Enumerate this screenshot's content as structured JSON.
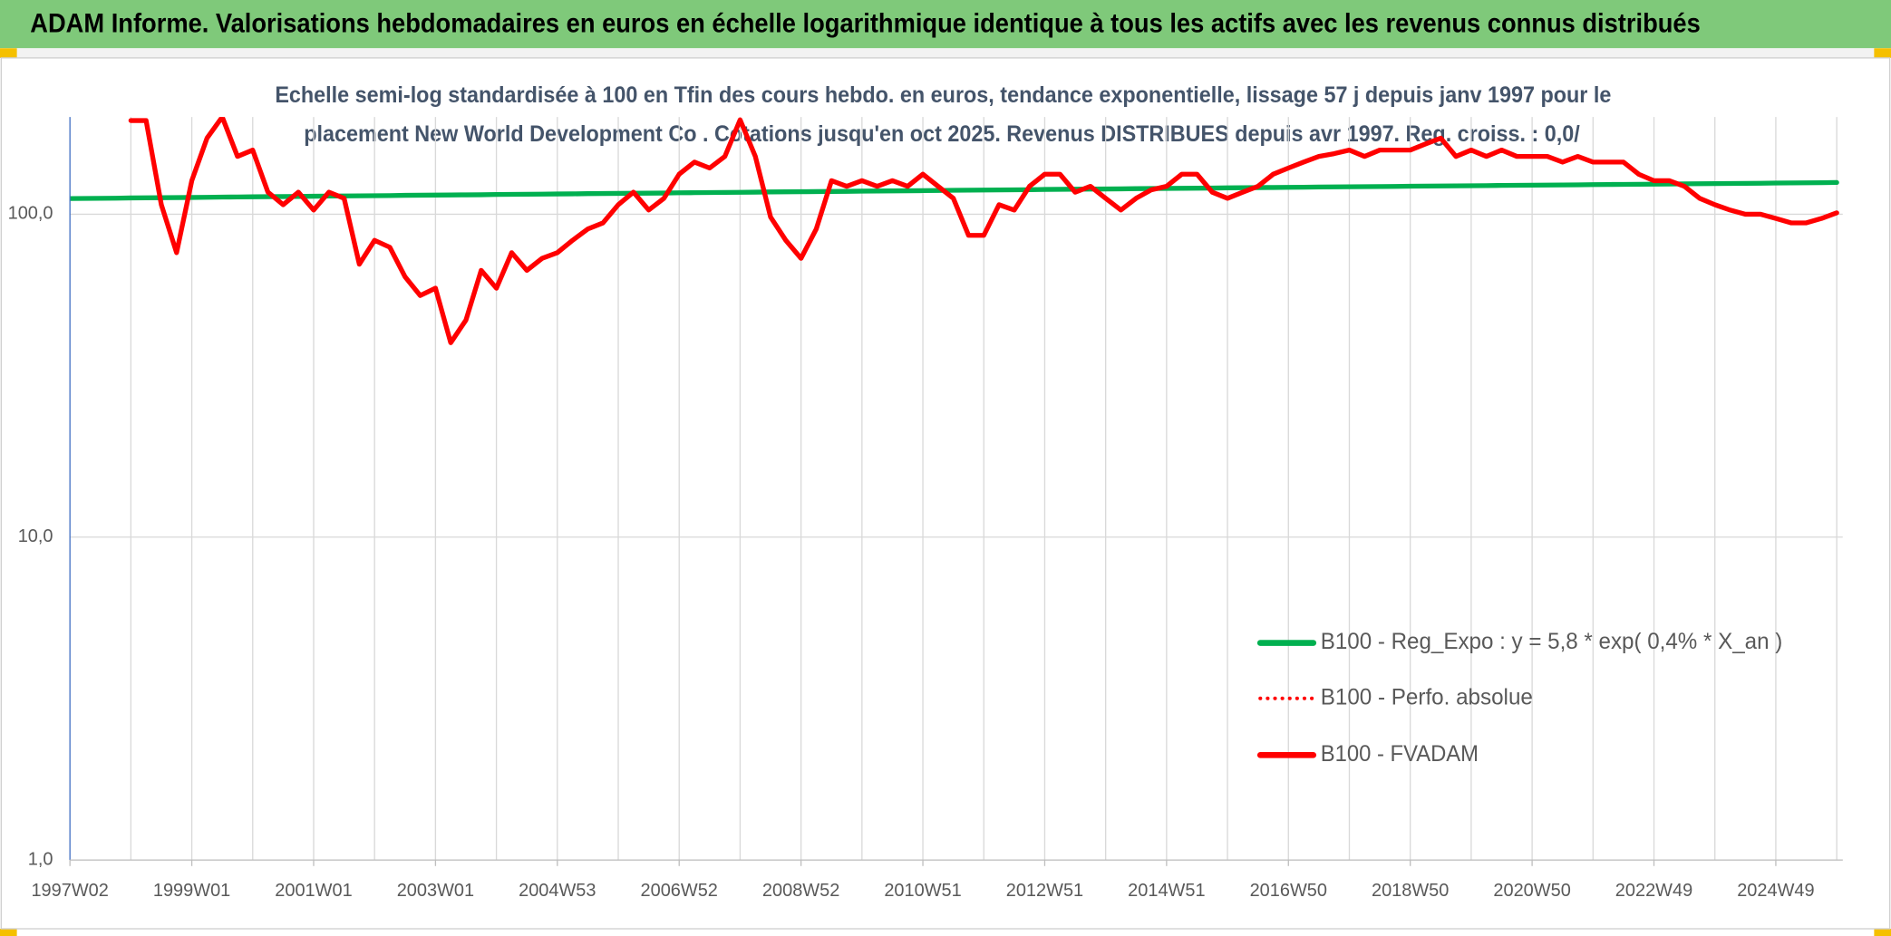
{
  "chart_data": {
    "type": "line",
    "title": "ADAM Informe. Valorisations hebdomadaires en euros en échelle logarithmique identique à tous les actifs avec les revenus connus distribués",
    "subtitle": [
      "Echelle semi-log standardisée à 100 en Tfin des cours hebdo. en euros, tendance exponentielle, lissage 57 j depuis janv 1997 pour le",
      "placement New World Development Co . Cotations jusqu'en oct 2025. Revenus DISTRIBUES depuis avr 1997. Reg. croiss. : 0,0/"
    ],
    "categories": [
      "1997W02",
      null,
      null,
      null,
      null,
      null,
      null,
      null,
      "1999W01",
      null,
      null,
      null,
      null,
      null,
      null,
      null,
      "2001W01",
      null,
      null,
      null,
      null,
      null,
      null,
      null,
      "2003W01",
      null,
      null,
      null,
      null,
      null,
      null,
      null,
      "2004W53",
      null,
      null,
      null,
      null,
      null,
      null,
      null,
      "2006W52",
      null,
      null,
      null,
      null,
      null,
      null,
      null,
      "2008W52",
      null,
      null,
      null,
      null,
      null,
      null,
      null,
      "2010W51",
      null,
      null,
      null,
      null,
      null,
      null,
      null,
      "2012W51",
      null,
      null,
      null,
      null,
      null,
      null,
      null,
      "2014W51",
      null,
      null,
      null,
      null,
      null,
      null,
      null,
      "2016W50",
      null,
      null,
      null,
      null,
      null,
      null,
      null,
      "2018W50",
      null,
      null,
      null,
      null,
      null,
      null,
      null,
      "2020W50",
      null,
      null,
      null,
      null,
      null,
      null,
      null,
      "2022W49",
      null,
      null,
      null,
      null,
      null,
      null,
      null,
      "2024W49",
      null,
      null,
      null,
      null
    ],
    "log_scale": true,
    "ylim": [
      1,
      200
    ],
    "yticks": [
      {
        "value": 1,
        "label": "1,0"
      },
      {
        "value": 10,
        "label": "10,0"
      },
      {
        "value": 100,
        "label": "100,0"
      }
    ],
    "grid": true,
    "legend": "right",
    "series": [
      {
        "name": "B100 - Reg_Expo : y = 5,8 * exp( 0,4% *  X_an )",
        "color": "#00b050",
        "style": "solid",
        "values": [
          111.8,
          111.9,
          112.0,
          112.1,
          112.3,
          112.4,
          112.5,
          112.6,
          112.7,
          112.8,
          113.0,
          113.1,
          113.2,
          113.3,
          113.4,
          113.5,
          113.7,
          113.8,
          113.9,
          114.0,
          114.1,
          114.2,
          114.4,
          114.5,
          114.6,
          114.7,
          114.8,
          114.9,
          115.1,
          115.2,
          115.3,
          115.4,
          115.5,
          115.6,
          115.8,
          115.9,
          116.0,
          116.1,
          116.2,
          116.3,
          116.5,
          116.6,
          116.7,
          116.8,
          116.9,
          117.0,
          117.2,
          117.3,
          117.4,
          117.5,
          117.6,
          117.7,
          117.9,
          118.0,
          118.1,
          118.2,
          118.3,
          118.4,
          118.6,
          118.7,
          118.8,
          118.9,
          119.0,
          119.1,
          119.3,
          119.4,
          119.5,
          119.6,
          119.7,
          119.8,
          120.0,
          120.1,
          120.2,
          120.3,
          120.4,
          120.5,
          120.7,
          120.8,
          120.9,
          121.0,
          121.1,
          121.2,
          121.4,
          121.5,
          121.6,
          121.7,
          121.8,
          121.9,
          122.1,
          122.2,
          122.3,
          122.4,
          122.5,
          122.6,
          122.8,
          122.9,
          123.0,
          123.1,
          123.2,
          123.3,
          123.5,
          123.6,
          123.7,
          123.8,
          123.9,
          124.0,
          124.2,
          124.3,
          124.4,
          124.5,
          124.6,
          124.7,
          124.9,
          125.0,
          125.1,
          125.2,
          125.4
        ]
      },
      {
        "name": "B100 - Perfo. absolue",
        "color": "#ff0000",
        "style": "dotted",
        "values": [
          null,
          null,
          null,
          null,
          195,
          195,
          107,
          76,
          127,
          172,
          200,
          151,
          158,
          117,
          107,
          117,
          103,
          117,
          112,
          70,
          83,
          79,
          64,
          56,
          59,
          40,
          47,
          67,
          59,
          76,
          67,
          73,
          76,
          83,
          90,
          94,
          107,
          117,
          103,
          112,
          133,
          145,
          139,
          151,
          196,
          151,
          98,
          83,
          73,
          90,
          127,
          122,
          127,
          122,
          127,
          122,
          133,
          122,
          112,
          86,
          86,
          107,
          103,
          122,
          133,
          133,
          117,
          122,
          112,
          103,
          112,
          119,
          122,
          133,
          133,
          117,
          112,
          117,
          122,
          133,
          139,
          145,
          151,
          154,
          158,
          151,
          158,
          158,
          158,
          165,
          172,
          151,
          158,
          151,
          158,
          151,
          151,
          151,
          145,
          151,
          145,
          145,
          145,
          133,
          127,
          127,
          122,
          112,
          107,
          103,
          100,
          100,
          97,
          94,
          94,
          97,
          101
        ]
      },
      {
        "name": "B100 - FVADAM",
        "color": "#ff0000",
        "style": "solid",
        "values": [
          null,
          null,
          null,
          null,
          195,
          195,
          107,
          76,
          127,
          172,
          200,
          151,
          158,
          117,
          107,
          117,
          103,
          117,
          112,
          70,
          83,
          79,
          64,
          56,
          59,
          40,
          47,
          67,
          59,
          76,
          67,
          73,
          76,
          83,
          90,
          94,
          107,
          117,
          103,
          112,
          133,
          145,
          139,
          151,
          196,
          151,
          98,
          83,
          73,
          90,
          127,
          122,
          127,
          122,
          127,
          122,
          133,
          122,
          112,
          86,
          86,
          107,
          103,
          122,
          133,
          133,
          117,
          122,
          112,
          103,
          112,
          119,
          122,
          133,
          133,
          117,
          112,
          117,
          122,
          133,
          139,
          145,
          151,
          154,
          158,
          151,
          158,
          158,
          158,
          165,
          172,
          151,
          158,
          151,
          158,
          151,
          151,
          151,
          145,
          151,
          145,
          145,
          145,
          133,
          127,
          127,
          122,
          112,
          107,
          103,
          100,
          100,
          97,
          94,
          94,
          97,
          101
        ]
      }
    ]
  }
}
